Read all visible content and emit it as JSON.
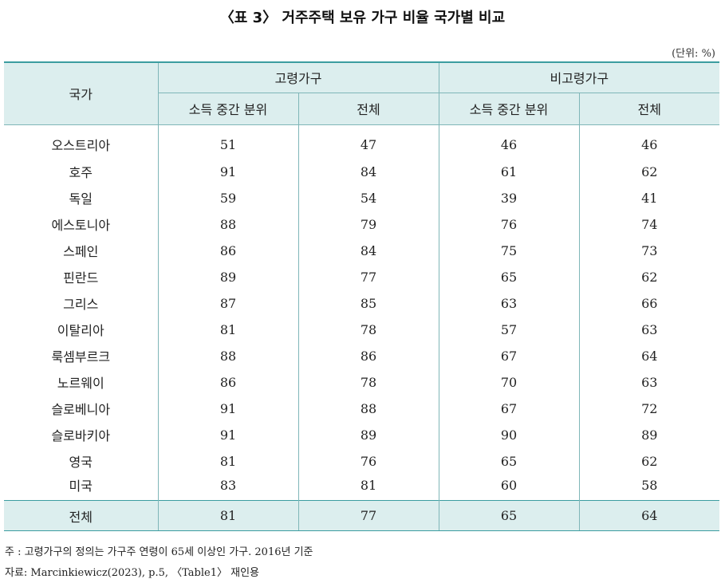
{
  "title": "〈표 3〉 거주주택 보유 가구 비율 국가별 비교",
  "unit": "(단위: %)",
  "header": {
    "country": "국가",
    "elderly": "고령가구",
    "non_elderly": "비고령가구",
    "median_income": "소득 중간 분위",
    "total": "전체"
  },
  "rows": [
    {
      "country": "오스트리아",
      "e_mid": "51",
      "e_total": "47",
      "n_mid": "46",
      "n_total": "46"
    },
    {
      "country": "호주",
      "e_mid": "91",
      "e_total": "84",
      "n_mid": "61",
      "n_total": "62"
    },
    {
      "country": "독일",
      "e_mid": "59",
      "e_total": "54",
      "n_mid": "39",
      "n_total": "41"
    },
    {
      "country": "에스토니아",
      "e_mid": "88",
      "e_total": "79",
      "n_mid": "76",
      "n_total": "74"
    },
    {
      "country": "스페인",
      "e_mid": "86",
      "e_total": "84",
      "n_mid": "75",
      "n_total": "73"
    },
    {
      "country": "핀란드",
      "e_mid": "89",
      "e_total": "77",
      "n_mid": "65",
      "n_total": "62"
    },
    {
      "country": "그리스",
      "e_mid": "87",
      "e_total": "85",
      "n_mid": "63",
      "n_total": "66"
    },
    {
      "country": "이탈리아",
      "e_mid": "81",
      "e_total": "78",
      "n_mid": "57",
      "n_total": "63"
    },
    {
      "country": "룩셈부르크",
      "e_mid": "88",
      "e_total": "86",
      "n_mid": "67",
      "n_total": "64"
    },
    {
      "country": "노르웨이",
      "e_mid": "86",
      "e_total": "78",
      "n_mid": "70",
      "n_total": "63"
    },
    {
      "country": "슬로베니아",
      "e_mid": "91",
      "e_total": "88",
      "n_mid": "67",
      "n_total": "72"
    },
    {
      "country": "슬로바키아",
      "e_mid": "91",
      "e_total": "89",
      "n_mid": "90",
      "n_total": "89"
    },
    {
      "country": "영국",
      "e_mid": "81",
      "e_total": "76",
      "n_mid": "65",
      "n_total": "62"
    },
    {
      "country": "미국",
      "e_mid": "83",
      "e_total": "81",
      "n_mid": "60",
      "n_total": "58"
    }
  ],
  "total_row": {
    "country": "전체",
    "e_mid": "81",
    "e_total": "77",
    "n_mid": "65",
    "n_total": "64"
  },
  "notes": {
    "note": "주  : 고령가구의 정의는 가구주 연령이 65세 이상인 가구. 2016년 기준",
    "source": "자료: Marcinkiewicz(2023), p.5, 〈Table1〉 재인용"
  },
  "colors": {
    "header_bg": "#dceeee",
    "border": "#3c9da0"
  }
}
